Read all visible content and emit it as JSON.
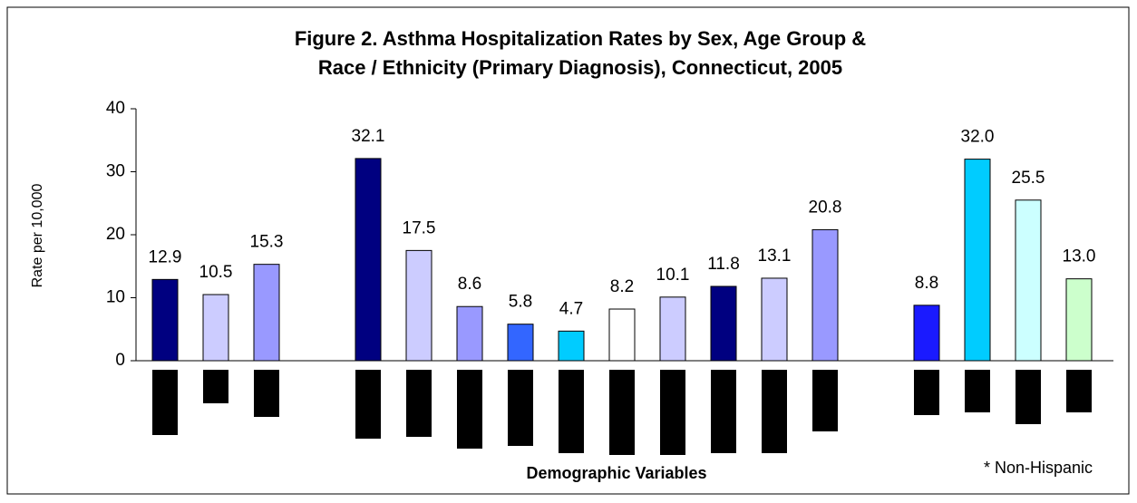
{
  "chart_data": {
    "type": "bar",
    "title": [
      "Figure 2. Asthma Hospitalization Rates by Sex, Age Group &",
      "Race / Ethnicity (Primary Diagnosis), Connecticut, 2005"
    ],
    "y_label": "Rate per 10,000",
    "x_label": "Demographic Variables",
    "annotation": "* Non-Hispanic",
    "categories": [
      null,
      null,
      null,
      null,
      null,
      null,
      null,
      null,
      null,
      null,
      null,
      null,
      null,
      null,
      null,
      null,
      null,
      null,
      null
    ],
    "values": [
      12.9,
      10.5,
      15.3,
      null,
      32.1,
      17.5,
      8.6,
      5.8,
      4.7,
      8.2,
      10.1,
      11.8,
      13.1,
      20.8,
      null,
      8.8,
      32,
      25.5,
      13
    ],
    "value_labels": [
      "12.9",
      "10.5",
      "15.3",
      null,
      "32.1",
      "17.5",
      "8.6",
      "5.8",
      "4.7",
      "8.2",
      "10.1",
      "11.8",
      "13.1",
      "20.8",
      null,
      "8.8",
      "32.0",
      "25.5",
      "13.0"
    ],
    "colors": [
      "#000080",
      "#ccccff",
      "#9999ff",
      null,
      "#000080",
      "#ccccff",
      "#9999ff",
      "#3366ff",
      "#00ccff",
      "#ffffff",
      "#ccccff",
      "#000080",
      "#ccccff",
      "#9999ff",
      null,
      "#1a1aff",
      "#00ccff",
      "#ccffff",
      "#ccffcc"
    ],
    "ylim": [
      0,
      40
    ],
    "yticks": [
      0,
      10,
      20,
      30,
      40
    ],
    "grid": false
  }
}
